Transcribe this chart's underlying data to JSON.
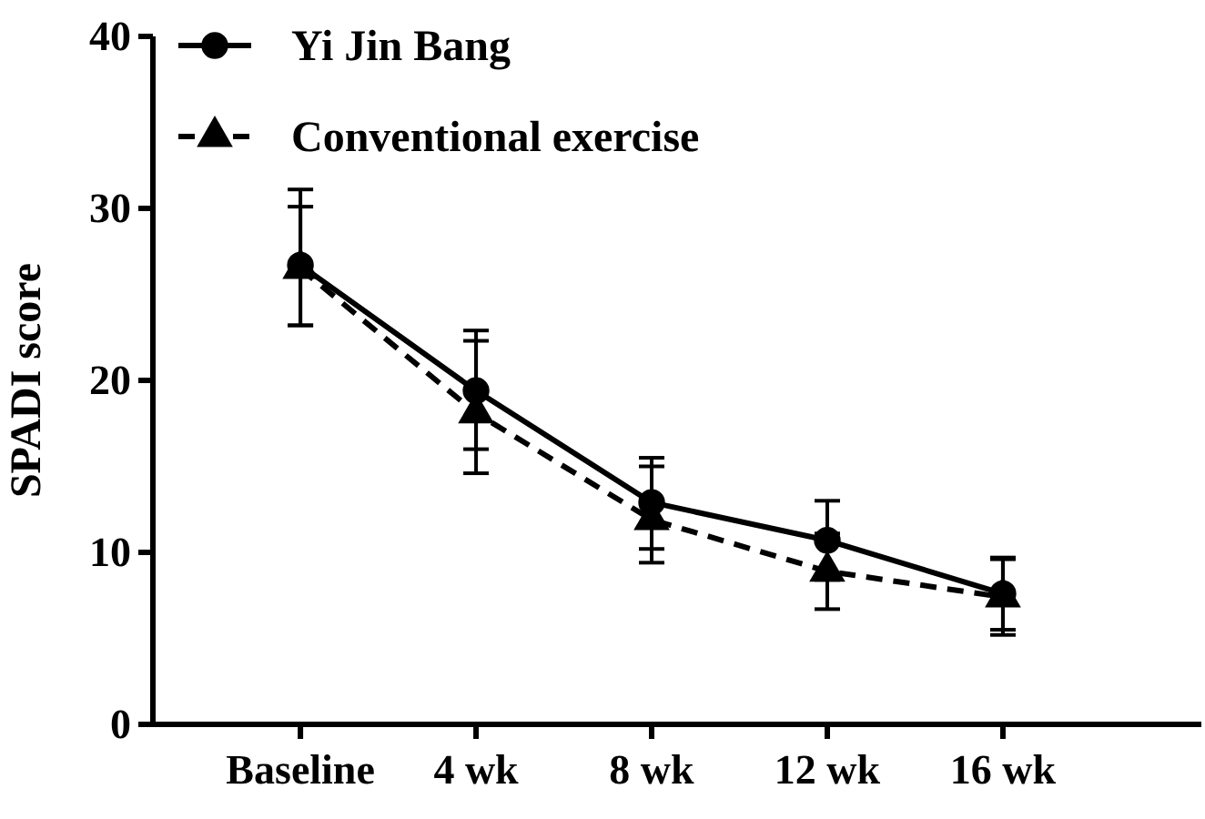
{
  "chart_data": {
    "type": "line",
    "ylabel": "SPADI score",
    "categories": [
      "Baseline",
      "4 wk",
      "8 wk",
      "12 wk",
      "16 wk"
    ],
    "ylim": [
      0,
      40
    ],
    "yticks": [
      0,
      10,
      20,
      30,
      40
    ],
    "legend": "top left",
    "grid": false,
    "series": [
      {
        "name": "Yi Jin Bang",
        "color": "#000000",
        "marker": "circle",
        "line_style": "solid",
        "values": [
          26.7,
          19.4,
          12.9,
          10.7,
          7.6
        ],
        "errors": [
          [
            23.2,
            31.1
          ],
          [
            16.0,
            22.9
          ],
          [
            10.2,
            15.5
          ],
          [
            8.4,
            13.0
          ],
          [
            5.5,
            9.7
          ]
        ]
      },
      {
        "name": "Conventional exercise",
        "color": "#000000",
        "marker": "triangle",
        "line_style": "dashed",
        "values": [
          26.5,
          18.1,
          11.9,
          8.9,
          7.4
        ],
        "errors": [
          [
            23.2,
            30.1
          ],
          [
            14.6,
            22.3
          ],
          [
            9.4,
            15.0
          ],
          [
            6.7,
            11.1
          ],
          [
            5.2,
            9.6
          ]
        ]
      }
    ]
  }
}
